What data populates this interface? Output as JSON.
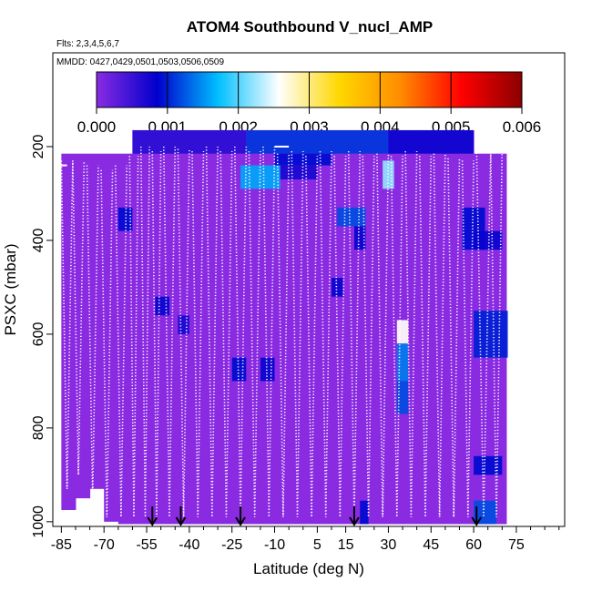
{
  "chart_data": {
    "type": "heatmap",
    "title": "ATOM4 Southbound V_nucl_AMP",
    "flights_note": "Flts: 2,3,4,5,6,7",
    "dates_note": "MMDD: 0427,0429,0501,0503,0506,0509",
    "xlabel": "Latitude (deg N)",
    "ylabel": "PSXC (mbar)",
    "xlim": [
      -88,
      92
    ],
    "ylim": [
      1010,
      0
    ],
    "x_ticks": [
      -85,
      -70,
      -55,
      -40,
      -25,
      -10,
      5,
      15,
      30,
      45,
      60,
      75
    ],
    "x_tick_labels": [
      "-85",
      "-70",
      "-55",
      "-40",
      "-25",
      "-10",
      "5",
      "15",
      "30",
      "45",
      "60",
      "75"
    ],
    "y_ticks": [
      200,
      400,
      600,
      800,
      1000
    ],
    "y_tick_labels": [
      "200",
      "400",
      "600",
      "800",
      "1000"
    ],
    "colorbar": {
      "min": 0.0,
      "max": 0.006,
      "tick_labels": [
        "0.000",
        "0.001",
        "0.002",
        "0.003",
        "0.004",
        "0.005",
        "0.006"
      ],
      "colors": [
        "#8a2be2",
        "#0000cd",
        "#00bfff",
        "#ffffff",
        "#ffd700",
        "#ff8c00",
        "#ff0000",
        "#8b0000"
      ]
    },
    "background_value": 0.0,
    "coverage_columns": [
      {
        "lat": -85,
        "top": 215,
        "bottom": 975
      },
      {
        "lat": -80,
        "top": 215,
        "bottom": 950
      },
      {
        "lat": -75,
        "top": 215,
        "bottom": 930
      },
      {
        "lat": -70,
        "top": 215,
        "bottom": 1000
      },
      {
        "lat": -65,
        "top": 215,
        "bottom": 1005
      },
      {
        "lat": -60,
        "top": 165,
        "bottom": 1005
      },
      {
        "lat": -40,
        "top": 165,
        "bottom": 1005
      },
      {
        "lat": -20,
        "top": 165,
        "bottom": 1005
      },
      {
        "lat": 0,
        "top": 165,
        "bottom": 1005
      },
      {
        "lat": 20,
        "top": 165,
        "bottom": 1005
      },
      {
        "lat": 40,
        "top": 165,
        "bottom": 1005
      },
      {
        "lat": 55,
        "top": 165,
        "bottom": 1005
      },
      {
        "lat": 60,
        "top": 215,
        "bottom": 1005
      },
      {
        "lat": 68,
        "top": 215,
        "bottom": 1005
      },
      {
        "lat": 71,
        "top": 215,
        "bottom": 1005
      }
    ],
    "patches": [
      {
        "lat_range": [
          -60,
          -20
        ],
        "p_range": [
          165,
          215
        ],
        "value": 0.0006
      },
      {
        "lat_range": [
          -20,
          30
        ],
        "p_range": [
          165,
          215
        ],
        "value": 0.0011
      },
      {
        "lat_range": [
          30,
          60
        ],
        "p_range": [
          165,
          215
        ],
        "value": 0.0008
      },
      {
        "lat_range": [
          -10,
          10
        ],
        "p_range": [
          215,
          240
        ],
        "value": 0.0009
      },
      {
        "lat_range": [
          -22,
          -8
        ],
        "p_range": [
          240,
          290
        ],
        "value": 0.0016
      },
      {
        "lat_range": [
          -8,
          5
        ],
        "p_range": [
          240,
          270
        ],
        "value": 0.0007
      },
      {
        "lat_range": [
          28,
          32
        ],
        "p_range": [
          230,
          290
        ],
        "value": 0.0022
      },
      {
        "lat_range": [
          -65,
          -60
        ],
        "p_range": [
          330,
          380
        ],
        "value": 0.0009
      },
      {
        "lat_range": [
          12,
          22
        ],
        "p_range": [
          330,
          370
        ],
        "value": 0.0012
      },
      {
        "lat_range": [
          18,
          22
        ],
        "p_range": [
          370,
          420
        ],
        "value": 0.0008
      },
      {
        "lat_range": [
          56,
          64
        ],
        "p_range": [
          330,
          420
        ],
        "value": 0.0009
      },
      {
        "lat_range": [
          60,
          70
        ],
        "p_range": [
          380,
          420
        ],
        "value": 0.0008
      },
      {
        "lat_range": [
          -52,
          -47
        ],
        "p_range": [
          520,
          560
        ],
        "value": 0.0008
      },
      {
        "lat_range": [
          -44,
          -40
        ],
        "p_range": [
          560,
          600
        ],
        "value": 0.0007
      },
      {
        "lat_range": [
          33,
          37
        ],
        "p_range": [
          570,
          620
        ],
        "value": 0.0026
      },
      {
        "lat_range": [
          33,
          37
        ],
        "p_range": [
          620,
          700
        ],
        "value": 0.0014
      },
      {
        "lat_range": [
          33,
          37
        ],
        "p_range": [
          700,
          770
        ],
        "value": 0.0012
      },
      {
        "lat_range": [
          -25,
          -20
        ],
        "p_range": [
          650,
          700
        ],
        "value": 0.0009
      },
      {
        "lat_range": [
          -15,
          -10
        ],
        "p_range": [
          650,
          700
        ],
        "value": 0.0008
      },
      {
        "lat_range": [
          60,
          72
        ],
        "p_range": [
          550,
          650
        ],
        "value": 0.001
      },
      {
        "lat_range": [
          10,
          14
        ],
        "p_range": [
          480,
          520
        ],
        "value": 0.0008
      },
      {
        "lat_range": [
          60,
          70
        ],
        "p_range": [
          860,
          900
        ],
        "value": 0.0009
      },
      {
        "lat_range": [
          60,
          68
        ],
        "p_range": [
          955,
          1005
        ],
        "value": 0.0012
      },
      {
        "lat_range": [
          20,
          23
        ],
        "p_range": [
          955,
          1005
        ],
        "value": 0.0009
      }
    ],
    "profiles": [
      {
        "lat_top": -85,
        "lat_bottom": -81,
        "p_top": 230,
        "p_bottom": 930
      },
      {
        "lat_top": -81,
        "lat_bottom": -77,
        "p_top": 230,
        "p_bottom": 900
      },
      {
        "lat_top": -76,
        "lat_bottom": -72,
        "p_top": 240,
        "p_bottom": 950
      },
      {
        "lat_top": -71,
        "lat_bottom": -67,
        "p_top": 250,
        "p_bottom": 990
      },
      {
        "lat_top": -66,
        "lat_bottom": -62,
        "p_top": 240,
        "p_bottom": 990
      },
      {
        "lat_top": -61,
        "lat_bottom": -58,
        "p_top": 220,
        "p_bottom": 990
      },
      {
        "lat_top": -57,
        "lat_bottom": -54,
        "p_top": 200,
        "p_bottom": 990
      },
      {
        "lat_top": -53,
        "lat_bottom": -50,
        "p_top": 210,
        "p_bottom": 990
      },
      {
        "lat_top": -49,
        "lat_bottom": -45,
        "p_top": 200,
        "p_bottom": 990
      },
      {
        "lat_top": -44,
        "lat_bottom": -40,
        "p_top": 205,
        "p_bottom": 990
      },
      {
        "lat_top": -39,
        "lat_bottom": -35,
        "p_top": 210,
        "p_bottom": 990
      },
      {
        "lat_top": -34,
        "lat_bottom": -30,
        "p_top": 200,
        "p_bottom": 990
      },
      {
        "lat_top": -29,
        "lat_bottom": -25,
        "p_top": 210,
        "p_bottom": 990
      },
      {
        "lat_top": -24,
        "lat_bottom": -20,
        "p_top": 200,
        "p_bottom": 990
      },
      {
        "lat_top": -19,
        "lat_bottom": -15,
        "p_top": 210,
        "p_bottom": 990
      },
      {
        "lat_top": -14,
        "lat_bottom": -10,
        "p_top": 200,
        "p_bottom": 990
      },
      {
        "lat_top": -9,
        "lat_bottom": -5,
        "p_top": 215,
        "p_bottom": 990
      },
      {
        "lat_top": -4,
        "lat_bottom": 0,
        "p_top": 210,
        "p_bottom": 990
      },
      {
        "lat_top": 1,
        "lat_bottom": 5,
        "p_top": 220,
        "p_bottom": 990
      },
      {
        "lat_top": 6,
        "lat_bottom": 10,
        "p_top": 210,
        "p_bottom": 990
      },
      {
        "lat_top": 11,
        "lat_bottom": 15,
        "p_top": 220,
        "p_bottom": 990
      },
      {
        "lat_top": 16,
        "lat_bottom": 20,
        "p_top": 210,
        "p_bottom": 990
      },
      {
        "lat_top": 21,
        "lat_bottom": 25,
        "p_top": 220,
        "p_bottom": 990
      },
      {
        "lat_top": 26,
        "lat_bottom": 30,
        "p_top": 215,
        "p_bottom": 990
      },
      {
        "lat_top": 31,
        "lat_bottom": 35,
        "p_top": 220,
        "p_bottom": 990
      },
      {
        "lat_top": 36,
        "lat_bottom": 40,
        "p_top": 210,
        "p_bottom": 990
      },
      {
        "lat_top": 41,
        "lat_bottom": 45,
        "p_top": 220,
        "p_bottom": 990
      },
      {
        "lat_top": 46,
        "lat_bottom": 50,
        "p_top": 215,
        "p_bottom": 990
      },
      {
        "lat_top": 51,
        "lat_bottom": 55,
        "p_top": 225,
        "p_bottom": 990
      },
      {
        "lat_top": 56,
        "lat_bottom": 60,
        "p_top": 230,
        "p_bottom": 990
      },
      {
        "lat_top": 61,
        "lat_bottom": 66,
        "p_top": 200,
        "p_bottom": 990
      },
      {
        "lat_top": 66,
        "lat_bottom": 70,
        "p_top": 210,
        "p_bottom": 990
      }
    ],
    "flat_segments": [
      {
        "lat_range": [
          -85,
          -83
        ],
        "p": 240
      },
      {
        "lat_range": [
          -10,
          -5
        ],
        "p": 200
      },
      {
        "lat_range": [
          65,
          70
        ],
        "p": 200
      }
    ],
    "arrows_lat": [
      -53,
      -43,
      -22,
      18,
      61
    ]
  }
}
